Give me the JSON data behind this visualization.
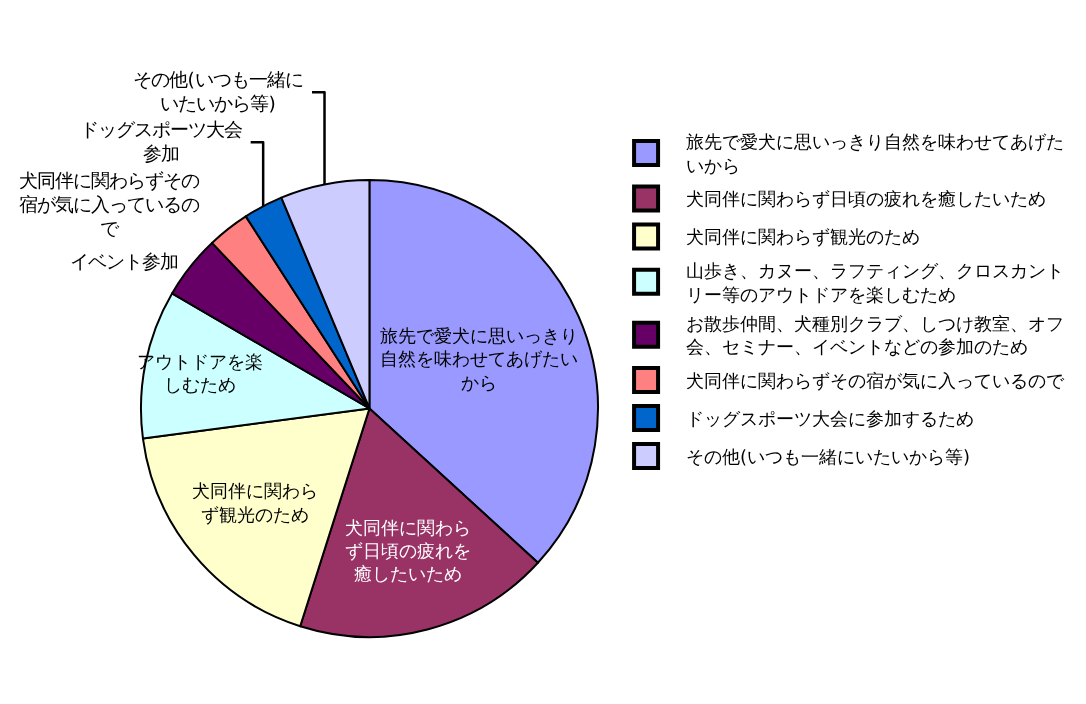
{
  "chart_data": {
    "type": "pie",
    "categories": [
      "旅先で愛犬に思いっきり自然を味わせてあげたいから",
      "犬同伴に関わらず日頃の疲れを癒したいため",
      "犬同伴に関わらず観光のため",
      "山歩き、カヌー、ラフティング、クロスカントリー等のアウトドアを楽しむため",
      "お散歩仲間、犬種別クラブ、しつけ教室、オフ会、セミナー、イベントなどの参加のため",
      "犬同伴に関わらずその宿が気に入っているので",
      "ドッグスポーツ大会に参加するため",
      "その他(いつも一緒にいたいから等)"
    ],
    "values": [
      36.8,
      18.1,
      18.0,
      10.5,
      4.5,
      3.0,
      2.8,
      6.3
    ],
    "colors": [
      "#9999ff",
      "#993366",
      "#ffffcc",
      "#ccffff",
      "#660066",
      "#ff8080",
      "#0066cc",
      "#ccccff"
    ],
    "annotations": [
      "旅先で愛犬に思いっきり自然を味わせてあげたいから",
      "犬同伴に関わらず日頃の疲れを癒したいため",
      "犬同伴に関わらず観光のため",
      "アウトドアを楽しむため",
      "イベント参加",
      "犬同伴に関わらずその宿が気に入っているので",
      "ドッグスポーツ大会参加",
      "その他(いつも一緒にいたいから等)"
    ],
    "legend": "right"
  }
}
